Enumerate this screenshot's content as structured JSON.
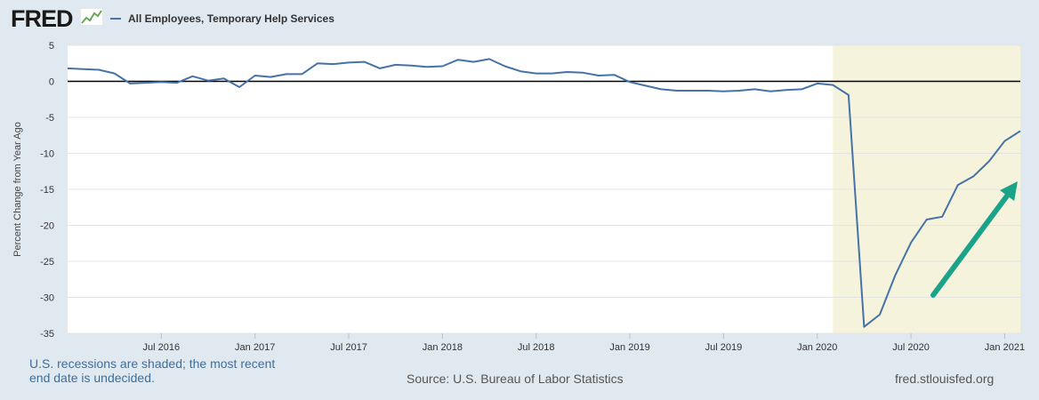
{
  "header": {
    "logo_text": "FRED",
    "legend_label": "All Employees, Temporary Help Services",
    "series_color": "#4572a7"
  },
  "chart_data": {
    "type": "line",
    "title": "All Employees, Temporary Help Services",
    "ylabel": "Percent Change from Year Ago",
    "xlabel": "",
    "ylim": [
      -35,
      5
    ],
    "yticks": [
      5,
      0,
      -5,
      -10,
      -15,
      -20,
      -25,
      -30,
      -35
    ],
    "xlim": [
      "2016-01",
      "2021-02"
    ],
    "xticks": [
      {
        "date": "2016-07",
        "label": "Jul 2016"
      },
      {
        "date": "2017-01",
        "label": "Jan 2017"
      },
      {
        "date": "2017-07",
        "label": "Jul 2017"
      },
      {
        "date": "2018-01",
        "label": "Jan 2018"
      },
      {
        "date": "2018-07",
        "label": "Jul 2018"
      },
      {
        "date": "2019-01",
        "label": "Jan 2019"
      },
      {
        "date": "2019-07",
        "label": "Jul 2019"
      },
      {
        "date": "2020-01",
        "label": "Jan 2020"
      },
      {
        "date": "2020-07",
        "label": "Jul 2020"
      },
      {
        "date": "2021-01",
        "label": "Jan 2021"
      }
    ],
    "recession_shading": {
      "start": "2020-02",
      "end": "2021-02",
      "color": "#f5f3dc"
    },
    "series": [
      {
        "name": "All Employees, Temporary Help Services",
        "color": "#4572a7",
        "x": [
          "2016-01",
          "2016-02",
          "2016-03",
          "2016-04",
          "2016-05",
          "2016-06",
          "2016-07",
          "2016-08",
          "2016-09",
          "2016-10",
          "2016-11",
          "2016-12",
          "2017-01",
          "2017-02",
          "2017-03",
          "2017-04",
          "2017-05",
          "2017-06",
          "2017-07",
          "2017-08",
          "2017-09",
          "2017-10",
          "2017-11",
          "2017-12",
          "2018-01",
          "2018-02",
          "2018-03",
          "2018-04",
          "2018-05",
          "2018-06",
          "2018-07",
          "2018-08",
          "2018-09",
          "2018-10",
          "2018-11",
          "2018-12",
          "2019-01",
          "2019-02",
          "2019-03",
          "2019-04",
          "2019-05",
          "2019-06",
          "2019-07",
          "2019-08",
          "2019-09",
          "2019-10",
          "2019-11",
          "2019-12",
          "2020-01",
          "2020-02",
          "2020-03",
          "2020-04",
          "2020-05",
          "2020-06",
          "2020-07",
          "2020-08",
          "2020-09",
          "2020-10",
          "2020-11",
          "2020-12",
          "2021-01",
          "2021-02"
        ],
        "values": [
          1.8,
          1.7,
          1.6,
          1.1,
          -0.3,
          -0.2,
          -0.1,
          -0.2,
          0.7,
          0.1,
          0.4,
          -0.8,
          0.8,
          0.6,
          1.0,
          1.0,
          2.5,
          2.4,
          2.6,
          2.7,
          1.8,
          2.3,
          2.2,
          2.0,
          2.1,
          3.0,
          2.7,
          3.1,
          2.1,
          1.4,
          1.1,
          1.1,
          1.3,
          1.2,
          0.8,
          0.9,
          -0.1,
          -0.6,
          -1.1,
          -1.3,
          -1.3,
          -1.3,
          -1.4,
          -1.3,
          -1.1,
          -1.4,
          -1.2,
          -1.1,
          -0.3,
          -0.5,
          -1.9,
          -34.1,
          -32.4,
          -26.9,
          -22.4,
          -19.2,
          -18.8,
          -14.4,
          -13.2,
          -11.1,
          -8.3,
          -6.9
        ]
      }
    ],
    "annotation": {
      "type": "arrow",
      "color": "#1ba38a"
    }
  },
  "footer": {
    "note": "U.S. recessions are shaded; the most recent end date is undecided.",
    "source": "Source: U.S. Bureau of Labor Statistics",
    "url": "fred.stlouisfed.org"
  }
}
